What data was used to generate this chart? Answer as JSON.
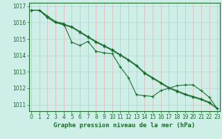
{
  "title": "Graphe pression niveau de la mer (hPa)",
  "background_color": "#ceeee8",
  "grid_color_h": "#b8d8d0",
  "grid_color_v": "#e8b0b0",
  "line_color": "#1a6b2a",
  "x_labels": [
    "0",
    "1",
    "2",
    "3",
    "4",
    "5",
    "6",
    "7",
    "8",
    "9",
    "10",
    "11",
    "12",
    "13",
    "14",
    "15",
    "16",
    "17",
    "18",
    "19",
    "20",
    "21",
    "22",
    "23"
  ],
  "ylim": [
    1010.6,
    1017.2
  ],
  "yticks": [
    1011,
    1012,
    1013,
    1014,
    1015,
    1016,
    1017
  ],
  "series": [
    [
      1016.75,
      1016.75,
      1016.4,
      1016.05,
      1015.95,
      1014.8,
      1014.6,
      1014.85,
      1014.25,
      1014.15,
      1014.1,
      1013.3,
      1012.65,
      1011.6,
      1011.55,
      1011.5,
      1011.85,
      1012.0,
      1012.15,
      1012.2,
      1012.2,
      1011.85,
      1011.45,
      1010.75
    ],
    [
      1016.75,
      1016.75,
      1016.3,
      1016.0,
      1015.9,
      1015.75,
      1015.45,
      1015.15,
      1014.85,
      1014.6,
      1014.35,
      1014.05,
      1013.75,
      1013.4,
      1012.95,
      1012.65,
      1012.35,
      1012.05,
      1011.85,
      1011.65,
      1011.5,
      1011.35,
      1011.15,
      1010.75
    ],
    [
      1016.75,
      1016.75,
      1016.3,
      1016.0,
      1015.85,
      1015.7,
      1015.4,
      1015.1,
      1014.8,
      1014.55,
      1014.3,
      1014.0,
      1013.7,
      1013.35,
      1012.9,
      1012.6,
      1012.3,
      1012.0,
      1011.8,
      1011.6,
      1011.45,
      1011.3,
      1011.1,
      1010.75
    ]
  ],
  "tick_fontsize": 5.5,
  "title_fontsize": 6.5
}
